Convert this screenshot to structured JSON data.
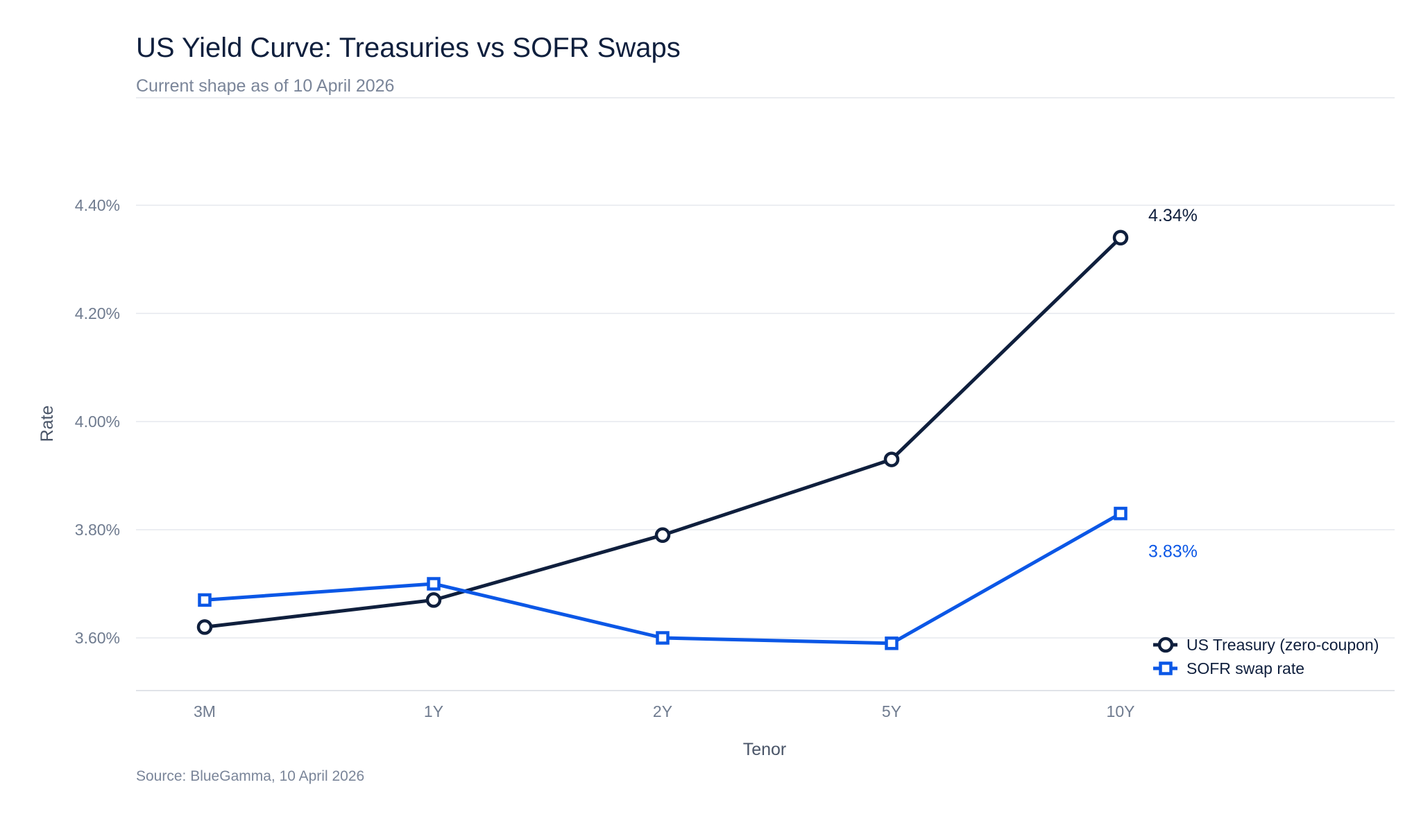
{
  "chart_data": {
    "type": "line",
    "title": "US Yield Curve: Treasuries vs SOFR Swaps",
    "subtitle": "Current shape as of 10 April 2026",
    "xlabel": "Tenor",
    "ylabel": "Rate",
    "source": "Source: BlueGamma, 10 April 2026",
    "categories": [
      "3M",
      "1Y",
      "2Y",
      "5Y",
      "10Y"
    ],
    "ylim": [
      3.5,
      4.5
    ],
    "yticks": [
      3.6,
      3.8,
      4.0,
      4.2,
      4.4
    ],
    "ytick_labels": [
      "3.60%",
      "3.80%",
      "4.00%",
      "4.20%",
      "4.40%"
    ],
    "grid": true,
    "legend_position": "bottom-right",
    "series": [
      {
        "name": "US Treasury (zero-coupon)",
        "values": [
          3.62,
          3.67,
          3.79,
          3.93,
          4.34
        ],
        "color": "#0f1f3d",
        "marker": "circle",
        "end_label": "4.34%"
      },
      {
        "name": "SOFR swap rate",
        "values": [
          3.67,
          3.7,
          3.6,
          3.59,
          3.83
        ],
        "color": "#0b57e6",
        "marker": "square",
        "end_label": "3.83%"
      }
    ]
  }
}
